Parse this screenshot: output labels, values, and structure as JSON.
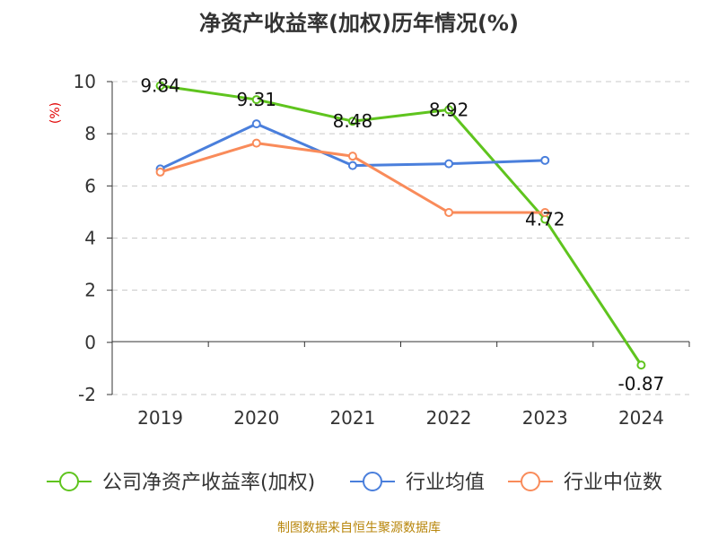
{
  "chart_data": {
    "type": "line",
    "title": "净资产收益率(加权)历年情况(%)",
    "ylabel": "(%)",
    "xlabel": "",
    "categories": [
      "2019",
      "2020",
      "2021",
      "2022",
      "2023",
      "2024"
    ],
    "ylim": [
      -2,
      10
    ],
    "yticks": [
      -2,
      0,
      2,
      4,
      6,
      8,
      10
    ],
    "grid": true,
    "legend_position": "bottom",
    "series": [
      {
        "name": "公司净资产收益率(加权)",
        "color": "#5fc41e",
        "values": [
          9.84,
          9.31,
          8.48,
          8.92,
          4.72,
          -0.87
        ],
        "labels": [
          "9.84",
          "9.31",
          "8.48",
          "8.92",
          "4.72",
          "-0.87"
        ]
      },
      {
        "name": "行业均值",
        "color": "#4a7fdc",
        "values": [
          6.65,
          8.38,
          6.78,
          6.85,
          6.98,
          null
        ]
      },
      {
        "name": "行业中位数",
        "color": "#f98b5a",
        "values": [
          6.53,
          7.64,
          7.14,
          4.98,
          4.98,
          null
        ]
      }
    ]
  },
  "footer": {
    "source": "制图数据来自恒生聚源数据库"
  }
}
